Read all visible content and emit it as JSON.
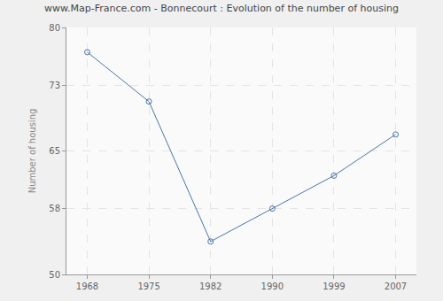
{
  "chart_data": {
    "type": "line",
    "title": "www.Map-France.com - Bonnecourt : Evolution of the number of housing",
    "y_label": "Number of housing",
    "categories": [
      "1968",
      "1975",
      "1982",
      "1990",
      "1999",
      "2007"
    ],
    "values": [
      77,
      71,
      54,
      58,
      62,
      67
    ],
    "color": "#4a74a8",
    "marker": "circle-open",
    "line_style": "solid",
    "ylim": [
      50,
      80
    ],
    "yticks": [
      50,
      58,
      65,
      73,
      80
    ],
    "grid": true
  }
}
